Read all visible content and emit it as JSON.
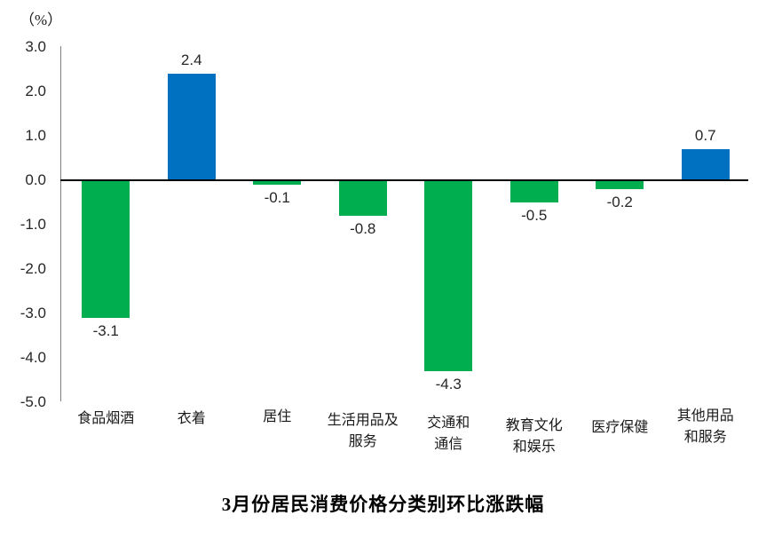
{
  "chart_data": {
    "type": "bar",
    "title": "3月份居民消费价格分类别环比涨跌幅",
    "unit_label": "（%）",
    "categories": [
      "食品烟酒",
      "衣着",
      "居住",
      "生活用品及服务",
      "交通和通信",
      "教育文化和娱乐",
      "医疗保健",
      "其他用品和服务"
    ],
    "category_display_lines": [
      [
        "食品烟酒"
      ],
      [
        "衣着"
      ],
      [
        "居住"
      ],
      [
        "生活用品及",
        "服务"
      ],
      [
        "交通和",
        "通信"
      ],
      [
        "教育文化",
        "和娱乐"
      ],
      [
        "医疗保健"
      ],
      [
        "其他用品",
        "和服务"
      ]
    ],
    "values": [
      -3.1,
      2.4,
      -0.1,
      -0.8,
      -4.3,
      -0.5,
      -0.2,
      0.7
    ],
    "value_labels": [
      "-3.1",
      "2.4",
      "-0.1",
      "-0.8",
      "-4.3",
      "-0.5",
      "-0.2",
      "0.7"
    ],
    "ylim": [
      -5.0,
      3.0
    ],
    "ytick_step": 1.0,
    "ytick_labels": [
      "3.0",
      "2.0",
      "1.0",
      "0.0",
      "-1.0",
      "-2.0",
      "-3.0",
      "-4.0",
      "-5.0"
    ],
    "grid": false,
    "legend": null,
    "bar_colors": {
      "positive": "#0070C0",
      "negative": "#00AE50"
    },
    "axis_line_color": "#7f7f7f",
    "zero_line_color": "#000000"
  }
}
